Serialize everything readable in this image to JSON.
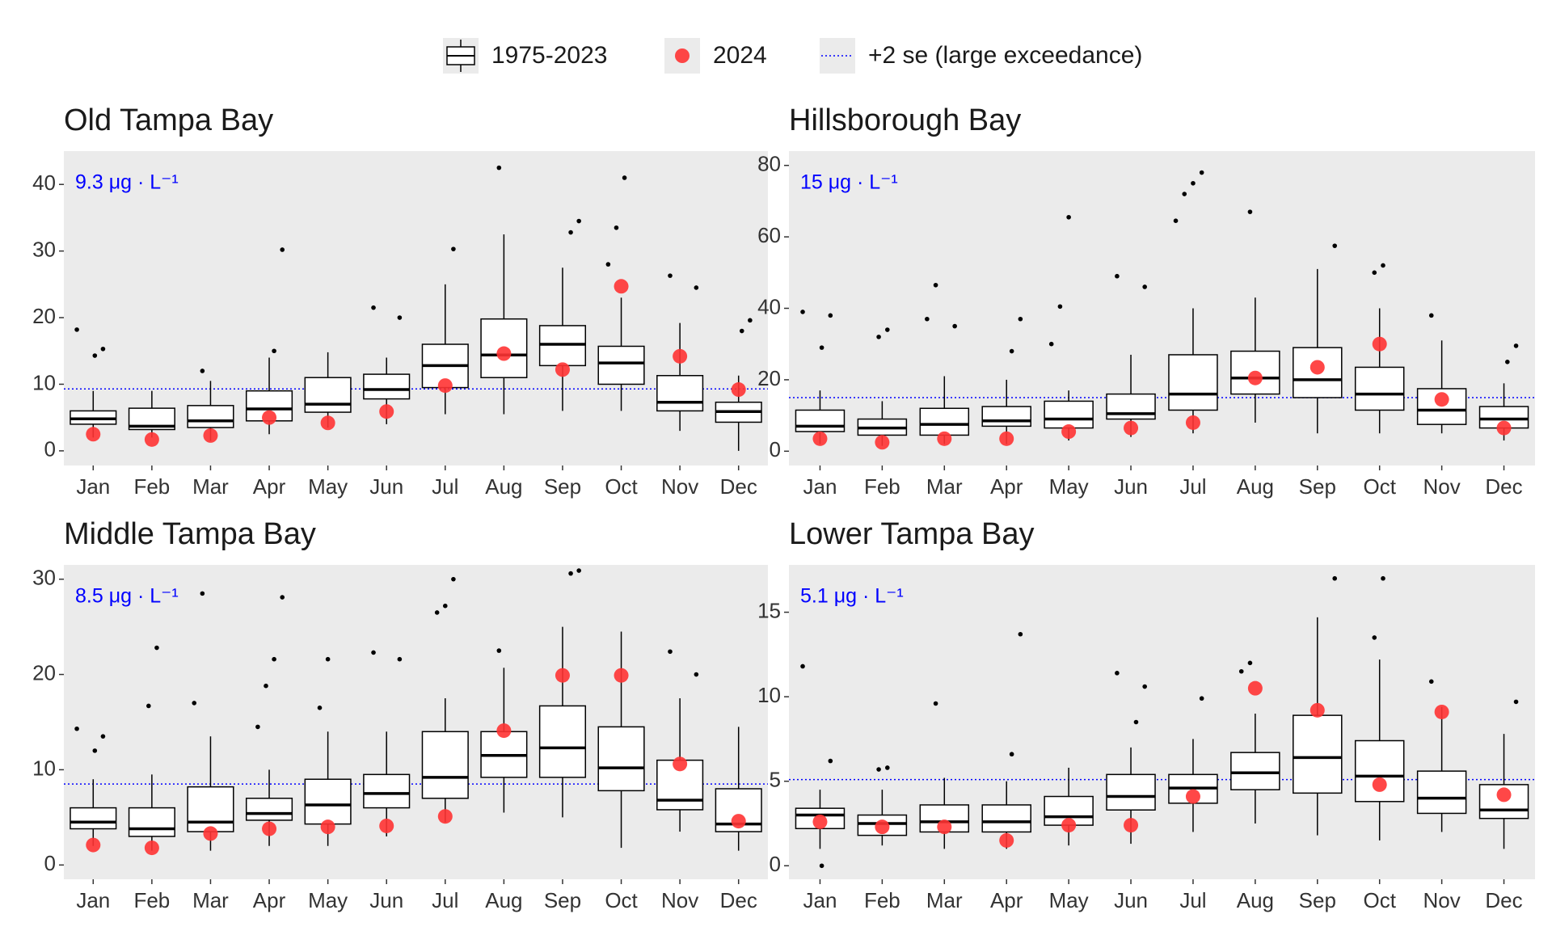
{
  "legend": [
    {
      "name": "1975-2023",
      "color": "#000000"
    },
    {
      "name": "2024",
      "color": "#ff3333"
    },
    {
      "name": "+2 se (large exceedance)",
      "color": "#0000ff"
    }
  ],
  "chart_data": [
    {
      "type": "boxplot",
      "title": "Old Tampa Bay",
      "threshold": 9.3,
      "threshold_label": "9.3 μg · L⁻¹",
      "categories": [
        "Jan",
        "Feb",
        "Mar",
        "Apr",
        "May",
        "Jun",
        "Jul",
        "Aug",
        "Sep",
        "Oct",
        "Nov",
        "Dec"
      ],
      "ylim": [
        -2.2,
        45
      ],
      "yticks": [
        0,
        10,
        20,
        30,
        40
      ],
      "boxes": [
        {
          "whisker_low": 2,
          "q1": 4,
          "median": 4.8,
          "q3": 6,
          "whisker_high": 9,
          "outliers": [
            18.2,
            15.3,
            14.3
          ]
        },
        {
          "whisker_low": 2,
          "q1": 3.2,
          "median": 3.7,
          "q3": 6.4,
          "whisker_high": 9,
          "outliers": []
        },
        {
          "whisker_low": 1.5,
          "q1": 3.5,
          "median": 4.5,
          "q3": 6.8,
          "whisker_high": 10.5,
          "outliers": [
            12
          ]
        },
        {
          "whisker_low": 2.5,
          "q1": 4.5,
          "median": 6.3,
          "q3": 9,
          "whisker_high": 14,
          "outliers": [
            30.2,
            15
          ]
        },
        {
          "whisker_low": 3.5,
          "q1": 5.8,
          "median": 7,
          "q3": 11,
          "whisker_high": 14.8,
          "outliers": []
        },
        {
          "whisker_low": 4,
          "q1": 7.8,
          "median": 9.2,
          "q3": 11.5,
          "whisker_high": 14,
          "outliers": [
            21.5,
            20
          ]
        },
        {
          "whisker_low": 5.5,
          "q1": 9.5,
          "median": 12.8,
          "q3": 16,
          "whisker_high": 25,
          "outliers": [
            30.3
          ]
        },
        {
          "whisker_low": 5.5,
          "q1": 11,
          "median": 14.4,
          "q3": 19.8,
          "whisker_high": 32.5,
          "outliers": [
            42.5
          ]
        },
        {
          "whisker_low": 6,
          "q1": 12.8,
          "median": 16,
          "q3": 18.8,
          "whisker_high": 27.5,
          "outliers": [
            34.5,
            32.8
          ]
        },
        {
          "whisker_low": 6,
          "q1": 10,
          "median": 13.2,
          "q3": 15.7,
          "whisker_high": 23,
          "outliers": [
            41,
            33.5,
            28
          ]
        },
        {
          "whisker_low": 3,
          "q1": 6,
          "median": 7.3,
          "q3": 11.3,
          "whisker_high": 19.2,
          "outliers": [
            26.3,
            24.5
          ]
        },
        {
          "whisker_low": 0,
          "q1": 4.3,
          "median": 5.9,
          "q3": 7.3,
          "whisker_high": 11.3,
          "outliers": [
            19.6,
            18
          ]
        }
      ],
      "current": [
        2.5,
        1.7,
        2.3,
        5.0,
        4.2,
        5.9,
        9.8,
        14.6,
        12.2,
        24.7,
        14.2,
        9.2
      ]
    },
    {
      "type": "boxplot",
      "title": "Hillsborough Bay",
      "threshold": 15,
      "threshold_label": "15 μg · L⁻¹",
      "categories": [
        "Jan",
        "Feb",
        "Mar",
        "Apr",
        "May",
        "Jun",
        "Jul",
        "Aug",
        "Sep",
        "Oct",
        "Nov",
        "Dec"
      ],
      "ylim": [
        -4,
        84
      ],
      "yticks": [
        0,
        20,
        40,
        60,
        80
      ],
      "boxes": [
        {
          "whisker_low": 2,
          "q1": 5.5,
          "median": 7,
          "q3": 11.5,
          "whisker_high": 17,
          "outliers": [
            39,
            38,
            29
          ]
        },
        {
          "whisker_low": 1.5,
          "q1": 4.5,
          "median": 6.5,
          "q3": 9,
          "whisker_high": 14,
          "outliers": [
            34,
            32
          ]
        },
        {
          "whisker_low": 2,
          "q1": 4.5,
          "median": 7.5,
          "q3": 12,
          "whisker_high": 21,
          "outliers": [
            46.5,
            37,
            35
          ]
        },
        {
          "whisker_low": 2,
          "q1": 7,
          "median": 8.5,
          "q3": 12.5,
          "whisker_high": 20,
          "outliers": [
            37,
            28
          ]
        },
        {
          "whisker_low": 3,
          "q1": 6.5,
          "median": 9,
          "q3": 14,
          "whisker_high": 17,
          "outliers": [
            65.5,
            40.5,
            30
          ]
        },
        {
          "whisker_low": 4,
          "q1": 9,
          "median": 10.5,
          "q3": 16,
          "whisker_high": 27,
          "outliers": [
            49,
            46
          ]
        },
        {
          "whisker_low": 5,
          "q1": 11.5,
          "median": 16,
          "q3": 27,
          "whisker_high": 40,
          "outliers": [
            78,
            75,
            72,
            64.5
          ]
        },
        {
          "whisker_low": 8,
          "q1": 16,
          "median": 20.5,
          "q3": 28,
          "whisker_high": 43,
          "outliers": [
            67
          ]
        },
        {
          "whisker_low": 5,
          "q1": 15,
          "median": 20,
          "q3": 29,
          "whisker_high": 51,
          "outliers": [
            57.5
          ]
        },
        {
          "whisker_low": 5,
          "q1": 11.5,
          "median": 16,
          "q3": 23.5,
          "whisker_high": 40,
          "outliers": [
            52,
            50
          ]
        },
        {
          "whisker_low": 5,
          "q1": 7.5,
          "median": 11.5,
          "q3": 17.5,
          "whisker_high": 31,
          "outliers": [
            38
          ]
        },
        {
          "whisker_low": 3,
          "q1": 6.5,
          "median": 9,
          "q3": 12.5,
          "whisker_high": 19,
          "outliers": [
            29.5,
            25
          ]
        }
      ],
      "current": [
        3.5,
        2.5,
        3.5,
        3.5,
        5.5,
        6.5,
        8,
        20.5,
        23.5,
        30,
        14.5,
        6.5
      ]
    },
    {
      "type": "boxplot",
      "title": "Middle Tampa Bay",
      "threshold": 8.5,
      "threshold_label": "8.5 μg · L⁻¹",
      "categories": [
        "Jan",
        "Feb",
        "Mar",
        "Apr",
        "May",
        "Jun",
        "Jul",
        "Aug",
        "Sep",
        "Oct",
        "Nov",
        "Dec"
      ],
      "ylim": [
        -1.5,
        31.5
      ],
      "yticks": [
        0,
        10,
        20,
        30
      ],
      "boxes": [
        {
          "whisker_low": 2,
          "q1": 3.8,
          "median": 4.5,
          "q3": 6,
          "whisker_high": 9,
          "outliers": [
            14.3,
            13.5,
            12
          ]
        },
        {
          "whisker_low": 1.5,
          "q1": 3,
          "median": 3.8,
          "q3": 6,
          "whisker_high": 9.5,
          "outliers": [
            22.8,
            16.7
          ]
        },
        {
          "whisker_low": 1.5,
          "q1": 3.5,
          "median": 4.5,
          "q3": 8.2,
          "whisker_high": 13.5,
          "outliers": [
            28.5,
            17
          ]
        },
        {
          "whisker_low": 2,
          "q1": 4.7,
          "median": 5.4,
          "q3": 7,
          "whisker_high": 10,
          "outliers": [
            28.1,
            21.6,
            18.8,
            14.5
          ]
        },
        {
          "whisker_low": 2,
          "q1": 4.3,
          "median": 6.3,
          "q3": 9,
          "whisker_high": 14,
          "outliers": [
            21.6,
            16.5
          ]
        },
        {
          "whisker_low": 3,
          "q1": 6,
          "median": 7.5,
          "q3": 9.5,
          "whisker_high": 14,
          "outliers": [
            22.3,
            21.6
          ]
        },
        {
          "whisker_low": 4.5,
          "q1": 7,
          "median": 9.2,
          "q3": 14,
          "whisker_high": 17.5,
          "outliers": [
            30,
            27.2,
            26.5
          ]
        },
        {
          "whisker_low": 5.5,
          "q1": 9.2,
          "median": 11.5,
          "q3": 14,
          "whisker_high": 20.7,
          "outliers": [
            22.5
          ]
        },
        {
          "whisker_low": 5,
          "q1": 9.2,
          "median": 12.3,
          "q3": 16.7,
          "whisker_high": 25,
          "outliers": [
            30.9,
            30.6
          ]
        },
        {
          "whisker_low": 1.8,
          "q1": 7.8,
          "median": 10.2,
          "q3": 14.5,
          "whisker_high": 24.5,
          "outliers": []
        },
        {
          "whisker_low": 3.5,
          "q1": 5.8,
          "median": 6.8,
          "q3": 11,
          "whisker_high": 17.5,
          "outliers": [
            22.4,
            20
          ]
        },
        {
          "whisker_low": 1.5,
          "q1": 3.5,
          "median": 4.3,
          "q3": 8,
          "whisker_high": 14.5,
          "outliers": []
        }
      ],
      "current": [
        2.1,
        1.8,
        3.3,
        3.8,
        4,
        4.1,
        5.1,
        14.1,
        19.9,
        19.9,
        10.6,
        4.6
      ]
    },
    {
      "type": "boxplot",
      "title": "Lower Tampa Bay",
      "threshold": 5.1,
      "threshold_label": "5.1 μg · L⁻¹",
      "categories": [
        "Jan",
        "Feb",
        "Mar",
        "Apr",
        "May",
        "Jun",
        "Jul",
        "Aug",
        "Sep",
        "Oct",
        "Nov",
        "Dec"
      ],
      "ylim": [
        -0.8,
        17.8
      ],
      "yticks": [
        0,
        5,
        10,
        15
      ],
      "boxes": [
        {
          "whisker_low": 1,
          "q1": 2.2,
          "median": 3,
          "q3": 3.4,
          "whisker_high": 4.5,
          "outliers": [
            11.8,
            6.2,
            0
          ]
        },
        {
          "whisker_low": 1.2,
          "q1": 1.8,
          "median": 2.5,
          "q3": 3,
          "whisker_high": 4.5,
          "outliers": [
            5.8,
            5.7
          ]
        },
        {
          "whisker_low": 1,
          "q1": 2,
          "median": 2.6,
          "q3": 3.6,
          "whisker_high": 5.2,
          "outliers": [
            9.6
          ]
        },
        {
          "whisker_low": 1,
          "q1": 2,
          "median": 2.6,
          "q3": 3.6,
          "whisker_high": 5,
          "outliers": [
            13.7,
            6.6
          ]
        },
        {
          "whisker_low": 1.2,
          "q1": 2.4,
          "median": 2.9,
          "q3": 4.1,
          "whisker_high": 5.8,
          "outliers": []
        },
        {
          "whisker_low": 1.3,
          "q1": 3.3,
          "median": 4.1,
          "q3": 5.4,
          "whisker_high": 7,
          "outliers": [
            11.4,
            10.6,
            8.5
          ]
        },
        {
          "whisker_low": 2,
          "q1": 3.7,
          "median": 4.6,
          "q3": 5.4,
          "whisker_high": 7.5,
          "outliers": [
            9.9
          ]
        },
        {
          "whisker_low": 2.5,
          "q1": 4.5,
          "median": 5.5,
          "q3": 6.7,
          "whisker_high": 9,
          "outliers": [
            12,
            11.5
          ]
        },
        {
          "whisker_low": 1.8,
          "q1": 4.3,
          "median": 6.4,
          "q3": 8.9,
          "whisker_high": 14.7,
          "outliers": [
            17
          ]
        },
        {
          "whisker_low": 1.5,
          "q1": 3.8,
          "median": 5.3,
          "q3": 7.4,
          "whisker_high": 12.2,
          "outliers": [
            17,
            13.5
          ]
        },
        {
          "whisker_low": 2,
          "q1": 3.1,
          "median": 4,
          "q3": 5.6,
          "whisker_high": 9.4,
          "outliers": [
            10.9
          ]
        },
        {
          "whisker_low": 1,
          "q1": 2.8,
          "median": 3.3,
          "q3": 4.8,
          "whisker_high": 7.8,
          "outliers": [
            9.7
          ]
        }
      ],
      "current": [
        2.6,
        2.3,
        2.3,
        1.5,
        2.4,
        2.4,
        4.1,
        10.5,
        9.2,
        4.8,
        9.1,
        4.2
      ]
    }
  ]
}
